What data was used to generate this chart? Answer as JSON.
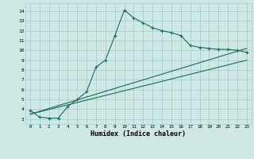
{
  "title": "",
  "xlabel": "Humidex (Indice chaleur)",
  "xlim": [
    -0.5,
    23.5
  ],
  "ylim": [
    2.5,
    14.8
  ],
  "xticks": [
    0,
    1,
    2,
    3,
    4,
    5,
    6,
    7,
    8,
    9,
    10,
    11,
    12,
    13,
    14,
    15,
    16,
    17,
    18,
    19,
    20,
    21,
    22,
    23
  ],
  "yticks": [
    3,
    4,
    5,
    6,
    7,
    8,
    9,
    10,
    11,
    12,
    13,
    14
  ],
  "bg_color": "#cde8e5",
  "grid_color": "#aacfcc",
  "line_color": "#1a6b5a",
  "curve_x": [
    0,
    1,
    2,
    3,
    4,
    5,
    6,
    7,
    8,
    9,
    10,
    11,
    12,
    13,
    14,
    15,
    16,
    17,
    18,
    19,
    20,
    21,
    22,
    23
  ],
  "curve_y": [
    3.9,
    3.2,
    3.1,
    3.1,
    4.3,
    5.0,
    5.8,
    8.3,
    9.0,
    11.5,
    14.1,
    13.3,
    12.8,
    12.3,
    12.0,
    11.8,
    11.5,
    10.5,
    10.3,
    10.2,
    10.1,
    10.1,
    10.0,
    9.8
  ],
  "trend1_x": [
    0,
    23
  ],
  "trend1_y": [
    3.5,
    10.2
  ],
  "trend2_x": [
    0,
    23
  ],
  "trend2_y": [
    3.5,
    9.0
  ],
  "marker": "+"
}
